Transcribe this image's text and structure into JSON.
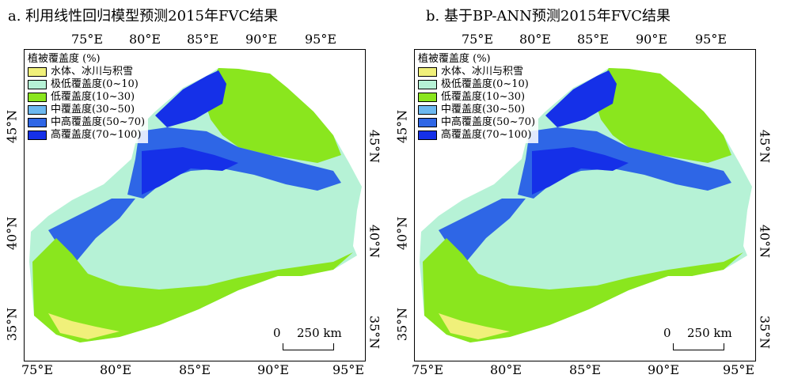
{
  "panels": [
    {
      "title": "a. 利用线性回归模型预测2015年FVC结果"
    },
    {
      "title": "b. 基于BP-ANN预测2015年FVC结果"
    }
  ],
  "axes": {
    "top_lon": [
      "75°E",
      "80°E",
      "85°E",
      "90°E",
      "95°E"
    ],
    "bottom_lon": [
      "75°E",
      "80°E",
      "85°E",
      "90°E",
      "95°E"
    ],
    "left_lat": [
      "45°N",
      "40°N",
      "35°N"
    ],
    "right_lat": [
      "45°N",
      "40°N",
      "35°N"
    ]
  },
  "legend": {
    "title": "植被覆盖度 (%)",
    "items": [
      {
        "label": "水体、冰川与积雪",
        "color": "#f0f07a"
      },
      {
        "label": "极低覆盖度(0~10)",
        "color": "#b6f2d6"
      },
      {
        "label": "低覆盖度(10~30)",
        "color": "#8ae61e"
      },
      {
        "label": "中覆盖度(30~50)",
        "color": "#6cb8f0"
      },
      {
        "label": "中高覆盖度(50~70)",
        "color": "#2e66e6"
      },
      {
        "label": "高覆盖度(70~100)",
        "color": "#1530e8"
      }
    ]
  },
  "scalebar": {
    "zero": "0",
    "label": "250 km"
  }
}
